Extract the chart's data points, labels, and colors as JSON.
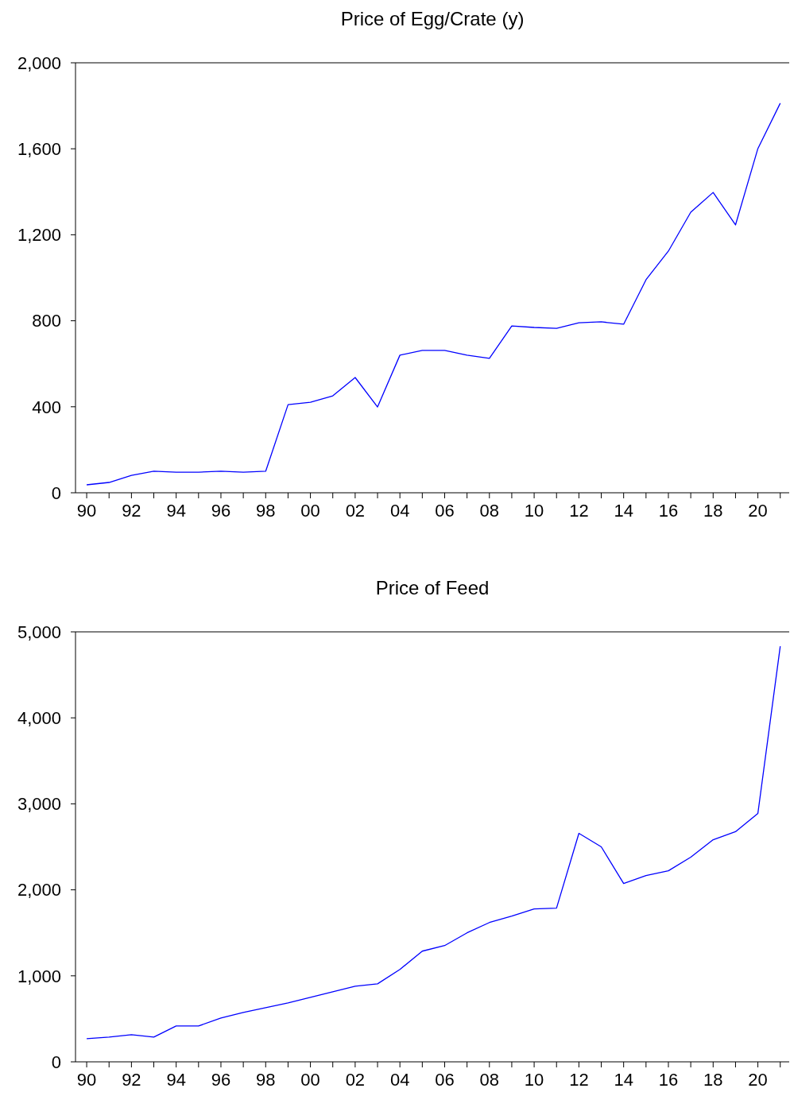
{
  "chart_data": [
    {
      "type": "line",
      "title": "Price of Egg/Crate (y)",
      "x": [
        1990,
        1991,
        1992,
        1993,
        1994,
        1995,
        1996,
        1997,
        1998,
        1999,
        2000,
        2001,
        2002,
        2003,
        2004,
        2005,
        2006,
        2007,
        2008,
        2009,
        2010,
        2011,
        2012,
        2013,
        2014,
        2015,
        2016,
        2017,
        2018,
        2019,
        2020,
        2021
      ],
      "series": [
        {
          "color": "#0000ff",
          "values": [
            37,
            48,
            81,
            100,
            96,
            96,
            100,
            96,
            100,
            410,
            421,
            451,
            536,
            399,
            640,
            662,
            662,
            640,
            625,
            776,
            769,
            765,
            791,
            795,
            784,
            991,
            1124,
            1305,
            1397,
            1246,
            1601,
            1812
          ]
        }
      ],
      "xlim": [
        1989.5,
        2021.4
      ],
      "xticks": [
        {
          "value": 1990,
          "label": "90"
        },
        {
          "value": 1991,
          "label": null
        },
        {
          "value": 1992,
          "label": "92"
        },
        {
          "value": 1993,
          "label": null
        },
        {
          "value": 1994,
          "label": "94"
        },
        {
          "value": 1995,
          "label": null
        },
        {
          "value": 1996,
          "label": "96"
        },
        {
          "value": 1997,
          "label": null
        },
        {
          "value": 1998,
          "label": "98"
        },
        {
          "value": 1999,
          "label": null
        },
        {
          "value": 2000,
          "label": "00"
        },
        {
          "value": 2001,
          "label": null
        },
        {
          "value": 2002,
          "label": "02"
        },
        {
          "value": 2003,
          "label": null
        },
        {
          "value": 2004,
          "label": "04"
        },
        {
          "value": 2005,
          "label": null
        },
        {
          "value": 2006,
          "label": "06"
        },
        {
          "value": 2007,
          "label": null
        },
        {
          "value": 2008,
          "label": "08"
        },
        {
          "value": 2009,
          "label": null
        },
        {
          "value": 2010,
          "label": "10"
        },
        {
          "value": 2011,
          "label": null
        },
        {
          "value": 2012,
          "label": "12"
        },
        {
          "value": 2013,
          "label": null
        },
        {
          "value": 2014,
          "label": "14"
        },
        {
          "value": 2015,
          "label": null
        },
        {
          "value": 2016,
          "label": "16"
        },
        {
          "value": 2017,
          "label": null
        },
        {
          "value": 2018,
          "label": "18"
        },
        {
          "value": 2019,
          "label": null
        },
        {
          "value": 2020,
          "label": "20"
        },
        {
          "value": 2021,
          "label": null
        }
      ],
      "ylim": [
        0,
        2000
      ],
      "yticks": [
        {
          "value": 0,
          "label": "0"
        },
        {
          "value": 400,
          "label": "400"
        },
        {
          "value": 800,
          "label": "800"
        },
        {
          "value": 1200,
          "label": "1,200"
        },
        {
          "value": 1600,
          "label": "1,600"
        },
        {
          "value": 2000,
          "label": "2,000"
        }
      ]
    },
    {
      "type": "line",
      "title": "Price of Feed",
      "x": [
        1990,
        1991,
        1992,
        1993,
        1994,
        1995,
        1996,
        1997,
        1998,
        1999,
        2000,
        2001,
        2002,
        2003,
        2004,
        2005,
        2006,
        2007,
        2008,
        2009,
        2010,
        2011,
        2012,
        2013,
        2014,
        2015,
        2016,
        2017,
        2018,
        2019,
        2020,
        2021
      ],
      "series": [
        {
          "color": "#0000ff",
          "values": [
            269,
            287,
            315,
            287,
            417,
            417,
            509,
            574,
            630,
            685,
            750,
            815,
            880,
            907,
            1074,
            1287,
            1352,
            1500,
            1620,
            1694,
            1778,
            1787,
            2657,
            2500,
            2074,
            2167,
            2222,
            2380,
            2583,
            2676,
            2889,
            4833
          ]
        }
      ],
      "xlim": [
        1989.5,
        2021.4
      ],
      "xticks": [
        {
          "value": 1990,
          "label": "90"
        },
        {
          "value": 1991,
          "label": null
        },
        {
          "value": 1992,
          "label": "92"
        },
        {
          "value": 1993,
          "label": null
        },
        {
          "value": 1994,
          "label": "94"
        },
        {
          "value": 1995,
          "label": null
        },
        {
          "value": 1996,
          "label": "96"
        },
        {
          "value": 1997,
          "label": null
        },
        {
          "value": 1998,
          "label": "98"
        },
        {
          "value": 1999,
          "label": null
        },
        {
          "value": 2000,
          "label": "00"
        },
        {
          "value": 2001,
          "label": null
        },
        {
          "value": 2002,
          "label": "02"
        },
        {
          "value": 2003,
          "label": null
        },
        {
          "value": 2004,
          "label": "04"
        },
        {
          "value": 2005,
          "label": null
        },
        {
          "value": 2006,
          "label": "06"
        },
        {
          "value": 2007,
          "label": null
        },
        {
          "value": 2008,
          "label": "08"
        },
        {
          "value": 2009,
          "label": null
        },
        {
          "value": 2010,
          "label": "10"
        },
        {
          "value": 2011,
          "label": null
        },
        {
          "value": 2012,
          "label": "12"
        },
        {
          "value": 2013,
          "label": null
        },
        {
          "value": 2014,
          "label": "14"
        },
        {
          "value": 2015,
          "label": null
        },
        {
          "value": 2016,
          "label": "16"
        },
        {
          "value": 2017,
          "label": null
        },
        {
          "value": 2018,
          "label": "18"
        },
        {
          "value": 2019,
          "label": null
        },
        {
          "value": 2020,
          "label": "20"
        },
        {
          "value": 2021,
          "label": null
        }
      ],
      "ylim": [
        0,
        5000
      ],
      "yticks": [
        {
          "value": 0,
          "label": "0"
        },
        {
          "value": 1000,
          "label": "1,000"
        },
        {
          "value": 2000,
          "label": "2,000"
        },
        {
          "value": 3000,
          "label": "3,000"
        },
        {
          "value": 4000,
          "label": "4,000"
        },
        {
          "value": 5000,
          "label": "5,000"
        }
      ]
    }
  ]
}
